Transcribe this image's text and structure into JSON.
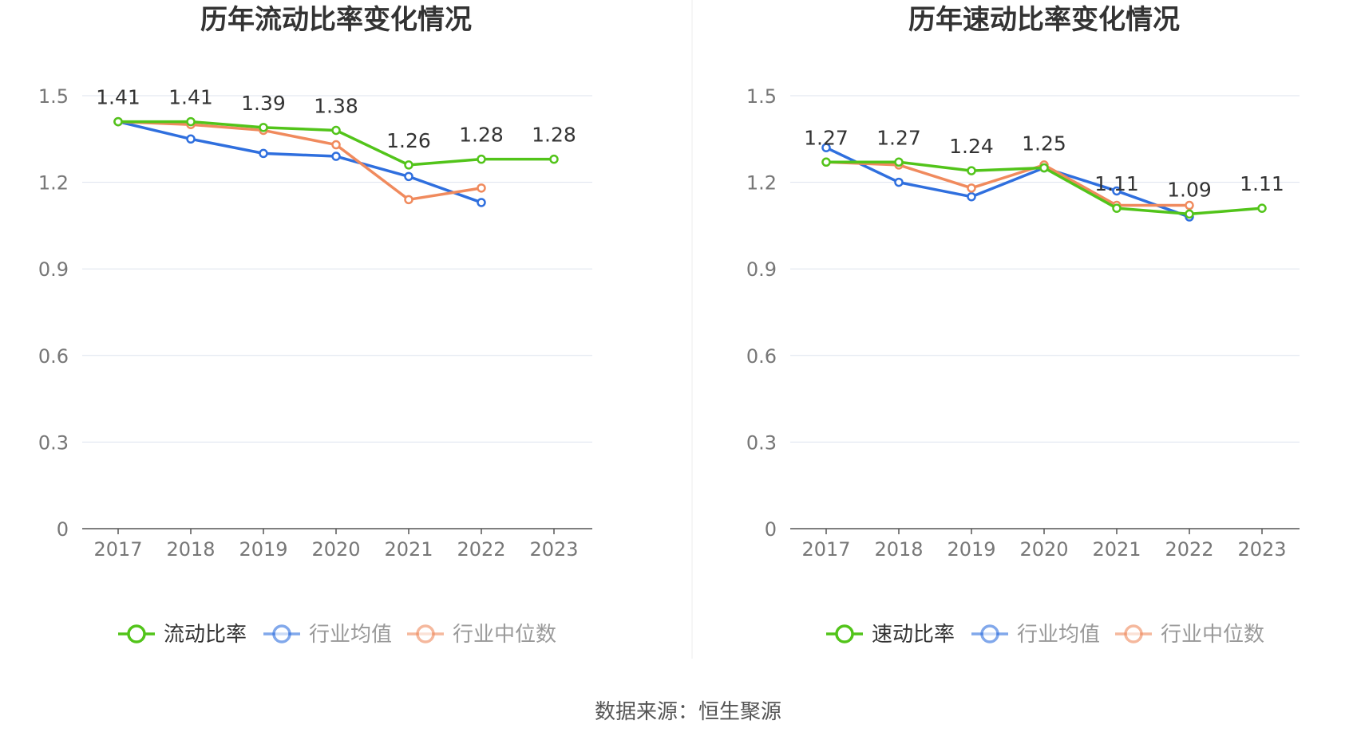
{
  "source_text": "数据来源：恒生聚源",
  "chart_data": [
    {
      "type": "line",
      "title": "历年流动比率变化情况",
      "categories": [
        "2017",
        "2018",
        "2019",
        "2020",
        "2021",
        "2022",
        "2023"
      ],
      "ylim": [
        0,
        1.5
      ],
      "yticks": [
        "0",
        "0.3",
        "0.6",
        "0.9",
        "1.2",
        "1.5"
      ],
      "grid": true,
      "legend_position": "bottom-center",
      "series": [
        {
          "name": "流动比率",
          "color": "#52c41a",
          "values": [
            1.41,
            1.41,
            1.39,
            1.38,
            1.26,
            1.28,
            1.28
          ],
          "labels": [
            "1.41",
            "1.41",
            "1.39",
            "1.38",
            "1.26",
            "1.28",
            "1.28"
          ]
        },
        {
          "name": "行业均值",
          "color": "#2f6fde",
          "values": [
            1.41,
            1.35,
            1.3,
            1.29,
            1.22,
            1.13,
            null
          ]
        },
        {
          "name": "行业中位数",
          "color": "#f08a5d",
          "values": [
            1.41,
            1.4,
            1.38,
            1.33,
            1.14,
            1.18,
            null
          ]
        }
      ]
    },
    {
      "type": "line",
      "title": "历年速动比率变化情况",
      "categories": [
        "2017",
        "2018",
        "2019",
        "2020",
        "2021",
        "2022",
        "2023"
      ],
      "ylim": [
        0,
        1.5
      ],
      "yticks": [
        "0",
        "0.3",
        "0.6",
        "0.9",
        "1.2",
        "1.5"
      ],
      "grid": true,
      "legend_position": "bottom-center",
      "series": [
        {
          "name": "速动比率",
          "color": "#52c41a",
          "values": [
            1.27,
            1.27,
            1.24,
            1.25,
            1.11,
            1.09,
            1.11
          ],
          "labels": [
            "1.27",
            "1.27",
            "1.24",
            "1.25",
            "1.11",
            "1.09",
            "1.11"
          ]
        },
        {
          "name": "行业均值",
          "color": "#2f6fde",
          "values": [
            1.32,
            1.2,
            1.15,
            1.25,
            1.17,
            1.08,
            null
          ]
        },
        {
          "name": "行业中位数",
          "color": "#f08a5d",
          "values": [
            1.27,
            1.26,
            1.18,
            1.26,
            1.12,
            1.12,
            null
          ]
        }
      ]
    }
  ]
}
